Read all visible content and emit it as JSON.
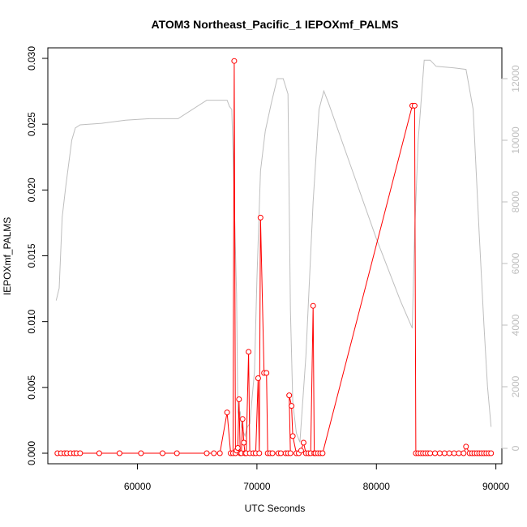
{
  "chart_data": {
    "type": "line",
    "title": "ATOM3 Northeast_Pacific_1 IEPOXmf_PALMS",
    "xlabel": "UTC Seconds",
    "ylabel": "IEPOXmf_PALMS",
    "xlim": [
      52500,
      90500
    ],
    "ylim": [
      -0.0008,
      0.0308
    ],
    "y2lim": [
      -500,
      13000
    ],
    "x_ticks": [
      60000,
      70000,
      80000,
      90000
    ],
    "x_tick_labels": [
      "60000",
      "70000",
      "80000",
      "90000"
    ],
    "y_ticks": [
      0.0,
      0.005,
      0.01,
      0.015,
      0.02,
      0.025,
      0.03
    ],
    "y_tick_labels": [
      "0.000",
      "0.005",
      "0.010",
      "0.015",
      "0.020",
      "0.025",
      "0.030"
    ],
    "y2_ticks": [
      0,
      2000,
      4000,
      6000,
      8000,
      10000,
      12000
    ],
    "y2_tick_labels": [
      "0",
      "2000",
      "4000",
      "6000",
      "8000",
      "10000",
      "12000"
    ],
    "grid": false,
    "colors": {
      "primary": "#ff0000",
      "secondary": "#bebebe",
      "axis": "#000000"
    },
    "series": [
      {
        "axis": "left",
        "style": "line+points",
        "points": [
          [
            53300,
            0
          ],
          [
            53600,
            0
          ],
          [
            53900,
            0
          ],
          [
            54100,
            0
          ],
          [
            54400,
            0
          ],
          [
            54700,
            0
          ],
          [
            54900,
            0
          ],
          [
            55200,
            0
          ],
          [
            56800,
            0
          ],
          [
            58500,
            0
          ],
          [
            60300,
            0
          ],
          [
            62100,
            0
          ],
          [
            63300,
            0
          ],
          [
            65800,
            0
          ],
          [
            66400,
            0
          ],
          [
            66900,
            0
          ],
          [
            67500,
            0.0031
          ],
          [
            67800,
            0
          ],
          [
            68000,
            0
          ],
          [
            68100,
            0.0298
          ],
          [
            68200,
            0
          ],
          [
            68300,
            0.0002
          ],
          [
            68400,
            0.0004
          ],
          [
            68500,
            0.0041
          ],
          [
            68600,
            0
          ],
          [
            68700,
            0
          ],
          [
            68800,
            0.0026
          ],
          [
            68900,
            0.0008
          ],
          [
            69000,
            0
          ],
          [
            69100,
            0
          ],
          [
            69300,
            0.0077
          ],
          [
            69400,
            0
          ],
          [
            69700,
            0
          ],
          [
            69900,
            0
          ],
          [
            70100,
            0.0057
          ],
          [
            70200,
            0
          ],
          [
            70300,
            0.0179
          ],
          [
            70600,
            0.0061
          ],
          [
            70800,
            0.0061
          ],
          [
            70900,
            0
          ],
          [
            71100,
            0
          ],
          [
            71300,
            0
          ],
          [
            71800,
            0
          ],
          [
            72000,
            0
          ],
          [
            72400,
            0
          ],
          [
            72600,
            0
          ],
          [
            72800,
            0
          ],
          [
            72700,
            0.0044
          ],
          [
            72900,
            0.0036
          ],
          [
            73000,
            0.0013
          ],
          [
            73300,
            0
          ],
          [
            73500,
            0
          ],
          [
            73700,
            0.0002
          ],
          [
            73900,
            0.0008
          ],
          [
            74100,
            0
          ],
          [
            74300,
            0
          ],
          [
            74500,
            0
          ],
          [
            74700,
            0.0112
          ],
          [
            74800,
            0
          ],
          [
            74900,
            0
          ],
          [
            75100,
            0
          ],
          [
            75300,
            0
          ],
          [
            75500,
            0
          ],
          [
            83000,
            0.0264
          ],
          [
            83200,
            0.0264
          ],
          [
            83300,
            0
          ],
          [
            83500,
            0
          ],
          [
            83700,
            0
          ],
          [
            83900,
            0
          ],
          [
            84100,
            0
          ],
          [
            84300,
            0
          ],
          [
            84500,
            0
          ],
          [
            84900,
            0
          ],
          [
            85300,
            0
          ],
          [
            85700,
            0
          ],
          [
            86100,
            0
          ],
          [
            86500,
            0
          ],
          [
            86900,
            0
          ],
          [
            87300,
            0
          ],
          [
            87500,
            0.0005
          ],
          [
            87800,
            0
          ],
          [
            88000,
            0
          ],
          [
            88200,
            0
          ],
          [
            88400,
            0
          ],
          [
            88600,
            0
          ],
          [
            88800,
            0
          ],
          [
            89000,
            0
          ],
          [
            89200,
            0
          ],
          [
            89400,
            0
          ],
          [
            89600,
            0
          ]
        ]
      },
      {
        "axis": "right",
        "style": "line",
        "points": [
          [
            53200,
            4800
          ],
          [
            53450,
            5200
          ],
          [
            53700,
            7500
          ],
          [
            54000,
            8500
          ],
          [
            54500,
            10000
          ],
          [
            54800,
            10400
          ],
          [
            55200,
            10500
          ],
          [
            57000,
            10550
          ],
          [
            59000,
            10650
          ],
          [
            61000,
            10700
          ],
          [
            63400,
            10700
          ],
          [
            65800,
            11300
          ],
          [
            67500,
            11300
          ],
          [
            67700,
            11100
          ],
          [
            67900,
            11000
          ],
          [
            68000,
            9600
          ],
          [
            68300,
            5000
          ],
          [
            68400,
            1200
          ],
          [
            68500,
            1000
          ],
          [
            68600,
            1200
          ],
          [
            68700,
            700
          ],
          [
            68800,
            600
          ],
          [
            69000,
            400
          ],
          [
            69200,
            700
          ],
          [
            69400,
            800
          ],
          [
            69800,
            2500
          ],
          [
            70000,
            5500
          ],
          [
            70300,
            9000
          ],
          [
            70700,
            10300
          ],
          [
            71200,
            11200
          ],
          [
            71700,
            12000
          ],
          [
            72200,
            12000
          ],
          [
            72600,
            11500
          ],
          [
            72800,
            4500
          ],
          [
            73000,
            1500
          ],
          [
            73300,
            500
          ],
          [
            73600,
            200
          ],
          [
            74100,
            3000
          ],
          [
            74700,
            8000
          ],
          [
            75200,
            11000
          ],
          [
            75600,
            11600
          ],
          [
            76000,
            11200
          ],
          [
            78000,
            9000
          ],
          [
            80000,
            6800
          ],
          [
            82000,
            4800
          ],
          [
            83000,
            3900
          ],
          [
            83200,
            7000
          ],
          [
            83500,
            10000
          ],
          [
            84000,
            12600
          ],
          [
            84500,
            12600
          ],
          [
            85000,
            12400
          ],
          [
            86500,
            12350
          ],
          [
            87500,
            12300
          ],
          [
            88100,
            11000
          ],
          [
            88600,
            7000
          ],
          [
            89000,
            4000
          ],
          [
            89300,
            2000
          ],
          [
            89600,
            700
          ]
        ]
      }
    ]
  }
}
